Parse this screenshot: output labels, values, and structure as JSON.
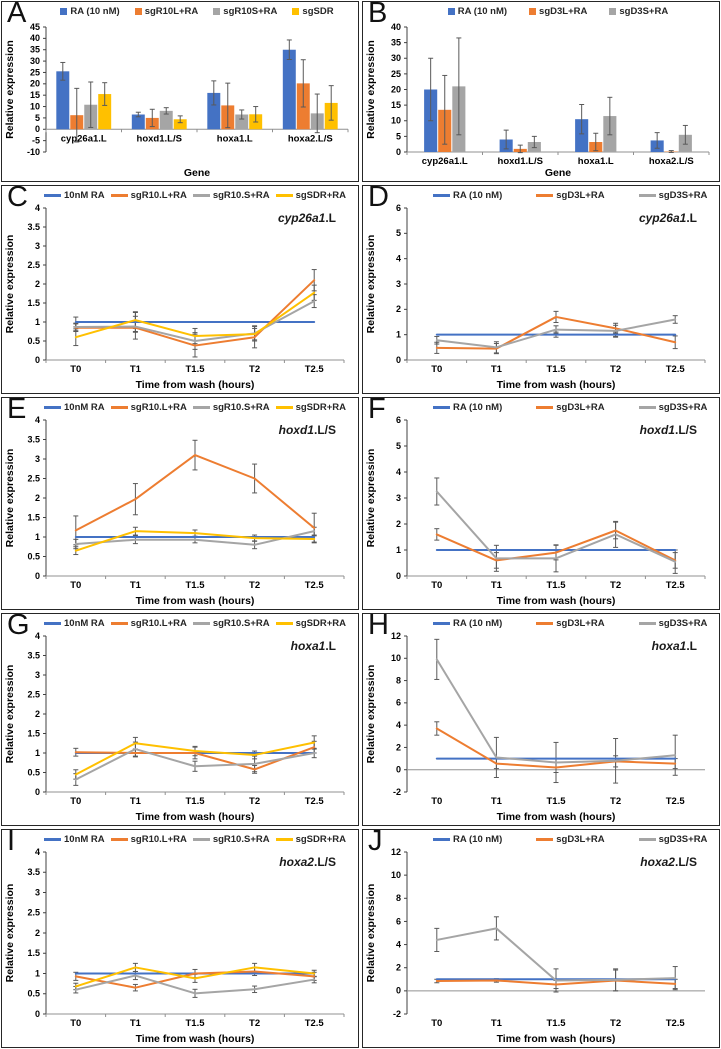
{
  "figure": {
    "background": "#ffffff",
    "panel_border": "#262626"
  },
  "colors": {
    "blue": "#4472C4",
    "orange": "#ED7D31",
    "gray": "#A5A5A5",
    "yellow": "#FFC000",
    "error_bar": "#595959",
    "axis": "#404040",
    "baseline": "#909090"
  },
  "chart_data": [
    {
      "label": "A",
      "type": "bar",
      "ylabel": "Relative expression",
      "xlabel": "Gene",
      "ylim": [
        -10,
        45
      ],
      "ytick_step": 5,
      "categories": [
        "cyp26a1.L",
        "hoxd1.L/S",
        "hoxa1.L",
        "hoxa2.L/S"
      ],
      "legend_position": "top",
      "series": [
        {
          "name": "RA (10 nM)",
          "color": "#4472C4",
          "values": [
            25.5,
            6.5,
            16.0,
            35.0
          ],
          "errors": [
            3.9,
            1.0,
            5.3,
            4.3
          ]
        },
        {
          "name": "sgR10L+RA",
          "color": "#ED7D31",
          "values": [
            6.2,
            5.0,
            10.5,
            20.2
          ],
          "errors": [
            11.8,
            3.8,
            9.8,
            10.4
          ]
        },
        {
          "name": "sgR10S+RA",
          "color": "#A5A5A5",
          "values": [
            10.8,
            8.1,
            6.5,
            7.0
          ],
          "errors": [
            10.0,
            1.4,
            2.0,
            8.5
          ]
        },
        {
          "name": "sgSDR",
          "color": "#FFC000",
          "values": [
            15.5,
            4.4,
            6.6,
            11.6
          ],
          "errors": [
            5.0,
            1.5,
            3.4,
            7.6
          ]
        }
      ]
    },
    {
      "label": "B",
      "type": "bar",
      "ylabel": "Relative expression",
      "xlabel": "Gene",
      "ylim": [
        0,
        40
      ],
      "ytick_step": 5,
      "categories": [
        "cyp26a1.L",
        "hoxd1.L/S",
        "hoxa1.L",
        "hoxa2.L/S"
      ],
      "legend_position": "top",
      "series": [
        {
          "name": "RA (10 nM)",
          "color": "#4472C4",
          "values": [
            20.0,
            4.0,
            10.5,
            3.7
          ],
          "errors": [
            10.0,
            3.0,
            4.7,
            2.5
          ]
        },
        {
          "name": "sgD3L+RA",
          "color": "#ED7D31",
          "values": [
            13.5,
            1.0,
            3.2,
            0.15
          ],
          "errors": [
            11.0,
            1.2,
            2.8,
            0.3
          ]
        },
        {
          "name": "sgD3S+RA",
          "color": "#A5A5A5",
          "values": [
            21.0,
            3.2,
            11.5,
            5.5
          ],
          "errors": [
            15.5,
            1.8,
            6.0,
            3.0
          ]
        }
      ]
    },
    {
      "label": "C",
      "type": "line",
      "gene_italic": "cyp26a1",
      "gene_suffix": ".L",
      "ylabel": "Relative expression",
      "xlabel": "Time from wash (hours)",
      "ylim": [
        0,
        4
      ],
      "ytick_step": 0.5,
      "categories": [
        "T0",
        "T1",
        "T1.5",
        "T2",
        "T2.5"
      ],
      "legend_position": "top",
      "series": [
        {
          "name": "10nM RA",
          "color": "#4472C4",
          "values": [
            1,
            1,
            1,
            1,
            1
          ],
          "errors": [
            0.13,
            0.25,
            0,
            0,
            0
          ]
        },
        {
          "name": "sgR10.L+RA",
          "color": "#ED7D31",
          "values": [
            0.85,
            0.85,
            0.38,
            0.6,
            2.1
          ],
          "errors": [
            0.1,
            0.3,
            0.3,
            0.28,
            0.28
          ]
        },
        {
          "name": "sgR10.S+RA",
          "color": "#A5A5A5",
          "values": [
            0.87,
            0.88,
            0.5,
            0.7,
            1.55
          ],
          "errors": [
            0.1,
            0.15,
            0.22,
            0.2,
            0.17
          ]
        },
        {
          "name": "sgSDR+RA",
          "color": "#FFC000",
          "values": [
            0.6,
            1.05,
            0.63,
            0.68,
            1.77
          ],
          "errors": [
            0.22,
            0.22,
            0.2,
            0.15,
            0.2
          ]
        }
      ]
    },
    {
      "label": "D",
      "type": "line",
      "gene_italic": "cyp26a1",
      "gene_suffix": ".L",
      "ylabel": "Relative expression",
      "xlabel": "Time from wash (hours)",
      "ylim": [
        0,
        6
      ],
      "ytick_step": 1,
      "categories": [
        "T0",
        "T1",
        "T1.5",
        "T2",
        "T2.5"
      ],
      "legend_position": "top",
      "series": [
        {
          "name": "RA (10 nM)",
          "color": "#4472C4",
          "values": [
            1,
            1,
            1,
            1,
            1
          ],
          "errors": [
            0,
            0,
            0.1,
            0.1,
            0
          ]
        },
        {
          "name": "sgD3L+RA",
          "color": "#ED7D31",
          "values": [
            0.48,
            0.45,
            1.7,
            1.25,
            0.7
          ],
          "errors": [
            0.22,
            0.2,
            0.22,
            0.2,
            0.25
          ]
        },
        {
          "name": "sgD3S+RA",
          "color": "#A5A5A5",
          "values": [
            0.78,
            0.5,
            1.2,
            1.15,
            1.6
          ],
          "errors": [
            0.15,
            0.22,
            0.15,
            0.22,
            0.15
          ]
        }
      ]
    },
    {
      "label": "E",
      "type": "line",
      "gene_italic": "hoxd1",
      "gene_suffix": ".L/S",
      "ylabel": "Relative expression",
      "xlabel": "Time from wash (hours)",
      "ylim": [
        0,
        4
      ],
      "ytick_step": 0.5,
      "categories": [
        "T0",
        "T1",
        "T1.5",
        "T2",
        "T2.5"
      ],
      "legend_position": "top",
      "series": [
        {
          "name": "10nM RA",
          "color": "#4472C4",
          "values": [
            1,
            1,
            1,
            1,
            1
          ],
          "errors": [
            0,
            0,
            0,
            0,
            0
          ]
        },
        {
          "name": "sgR10.L+RA",
          "color": "#ED7D31",
          "values": [
            1.17,
            1.97,
            3.1,
            2.5,
            1.23
          ],
          "errors": [
            0.37,
            0.4,
            0.38,
            0.37,
            0.38
          ]
        },
        {
          "name": "sgR10.S+RA",
          "color": "#A5A5A5",
          "values": [
            0.82,
            0.93,
            0.93,
            0.8,
            1.15
          ],
          "errors": [
            0.12,
            0.1,
            0.08,
            0.1,
            0.1
          ]
        },
        {
          "name": "sgSDR+RA",
          "color": "#FFC000",
          "values": [
            0.65,
            1.15,
            1.1,
            0.97,
            0.95
          ],
          "errors": [
            0.1,
            0.1,
            0.08,
            0.08,
            0.08
          ]
        }
      ]
    },
    {
      "label": "F",
      "type": "line",
      "gene_italic": "hoxd1",
      "gene_suffix": ".L/S",
      "ylabel": "Relative expression",
      "xlabel": "Time from wash (hours)",
      "ylim": [
        0,
        6
      ],
      "ytick_step": 1,
      "categories": [
        "T0",
        "T1",
        "T1.5",
        "T2",
        "T2.5"
      ],
      "legend_position": "top",
      "series": [
        {
          "name": "RA (10 nM)",
          "color": "#4472C4",
          "values": [
            1,
            1,
            1,
            1,
            1
          ],
          "errors": [
            0,
            0,
            0,
            0,
            0
          ]
        },
        {
          "name": "sgD3L+RA",
          "color": "#ED7D31",
          "values": [
            1.6,
            0.6,
            0.9,
            1.75,
            0.6
          ],
          "errors": [
            0.22,
            0.3,
            0.28,
            0.32,
            0.3
          ]
        },
        {
          "name": "sgD3S+RA",
          "color": "#A5A5A5",
          "values": [
            3.25,
            0.68,
            0.68,
            1.6,
            0.55
          ],
          "errors": [
            0.52,
            0.5,
            0.52,
            0.5,
            0.45
          ]
        }
      ]
    },
    {
      "label": "G",
      "type": "line",
      "gene_italic": "hoxa1",
      "gene_suffix": ".L",
      "ylabel": "Relative expression",
      "xlabel": "Time from wash (hours)",
      "ylim": [
        0,
        4
      ],
      "ytick_step": 0.5,
      "categories": [
        "T0",
        "T1",
        "T1.5",
        "T2",
        "T2.5"
      ],
      "legend_position": "top",
      "series": [
        {
          "name": "10nM RA",
          "color": "#4472C4",
          "values": [
            1,
            1,
            1,
            1,
            1
          ],
          "errors": [
            0,
            0,
            0,
            0,
            0
          ]
        },
        {
          "name": "sgR10.L+RA",
          "color": "#ED7D31",
          "values": [
            1.02,
            1.0,
            1.0,
            0.58,
            1.15
          ],
          "errors": [
            0.1,
            0.1,
            0.15,
            0.1,
            0.15
          ]
        },
        {
          "name": "sgR10.S+RA",
          "color": "#A5A5A5",
          "values": [
            0.32,
            1.1,
            0.66,
            0.72,
            1.0
          ],
          "errors": [
            0.15,
            0.18,
            0.13,
            0.2,
            0.12
          ]
        },
        {
          "name": "sgSDR+RA",
          "color": "#FFC000",
          "values": [
            0.45,
            1.25,
            1.05,
            0.95,
            1.27
          ],
          "errors": [
            0.12,
            0.15,
            0.12,
            0.1,
            0.17
          ]
        }
      ]
    },
    {
      "label": "H",
      "type": "line",
      "gene_italic": "hoxa1",
      "gene_suffix": ".L",
      "ylabel": "Relative expression",
      "xlabel": "Time from wash (hours)",
      "ylim": [
        -2,
        12
      ],
      "ytick_step": 2,
      "categories": [
        "T0",
        "T1",
        "T1.5",
        "T2",
        "T2.5"
      ],
      "legend_position": "top",
      "series": [
        {
          "name": "RA (10 nM)",
          "color": "#4472C4",
          "values": [
            1,
            1,
            1,
            1,
            1
          ],
          "errors": [
            0,
            0,
            0,
            0,
            0
          ]
        },
        {
          "name": "sgD3L+RA",
          "color": "#ED7D31",
          "values": [
            3.7,
            0.55,
            0.2,
            0.75,
            0.55
          ],
          "errors": [
            0.6,
            0.45,
            0.45,
            0.5,
            0.45
          ]
        },
        {
          "name": "sgD3S+RA",
          "color": "#A5A5A5",
          "values": [
            9.9,
            1.1,
            0.65,
            0.8,
            1.3
          ],
          "errors": [
            1.8,
            1.8,
            1.8,
            2.0,
            1.8
          ]
        }
      ]
    },
    {
      "label": "I",
      "type": "line",
      "gene_italic": "hoxa2",
      "gene_suffix": ".L/S",
      "ylabel": "Relative expression",
      "xlabel": "Time from wash (hours)",
      "ylim": [
        0,
        4
      ],
      "ytick_step": 0.5,
      "categories": [
        "T0",
        "T1",
        "T1.5",
        "T2",
        "T2.5"
      ],
      "legend_position": "top",
      "series": [
        {
          "name": "10nM RA",
          "color": "#4472C4",
          "values": [
            1,
            1,
            1,
            1,
            1
          ],
          "errors": [
            0,
            0,
            0,
            0,
            0
          ]
        },
        {
          "name": "sgR10.L+RA",
          "color": "#ED7D31",
          "values": [
            0.93,
            0.65,
            1.0,
            1.05,
            0.93
          ],
          "errors": [
            0.1,
            0.08,
            0.1,
            0.1,
            0.1
          ]
        },
        {
          "name": "sgR10.S+RA",
          "color": "#A5A5A5",
          "values": [
            0.6,
            0.95,
            0.51,
            0.61,
            0.85
          ],
          "errors": [
            0.08,
            0.1,
            0.1,
            0.08,
            0.08
          ]
        },
        {
          "name": "sgSDR+RA",
          "color": "#FFC000",
          "values": [
            0.68,
            1.15,
            0.88,
            1.15,
            1.0
          ],
          "errors": [
            0.08,
            0.1,
            0.1,
            0.1,
            0.08
          ]
        }
      ]
    },
    {
      "label": "J",
      "type": "line",
      "gene_italic": "hoxa2",
      "gene_suffix": ".L/S",
      "ylabel": "Relative expression",
      "xlabel": "Time from wash (hours)",
      "ylim": [
        -2,
        12
      ],
      "ytick_step": 2,
      "categories": [
        "T0",
        "T1",
        "T1.5",
        "T2",
        "T2.5"
      ],
      "legend_position": "top",
      "series": [
        {
          "name": "RA (10 nM)",
          "color": "#4472C4",
          "values": [
            1,
            1,
            1,
            1,
            1
          ],
          "errors": [
            0,
            0,
            0,
            0,
            0
          ]
        },
        {
          "name": "sgD3L+RA",
          "color": "#ED7D31",
          "values": [
            0.85,
            0.9,
            0.55,
            0.9,
            0.6
          ],
          "errors": [
            0.15,
            0.15,
            0.35,
            0.9,
            0.4
          ]
        },
        {
          "name": "sgD3S+RA",
          "color": "#A5A5A5",
          "values": [
            4.4,
            5.4,
            0.9,
            0.95,
            1.1
          ],
          "errors": [
            1.0,
            1.0,
            1.0,
            0.95,
            1.0
          ]
        }
      ]
    }
  ]
}
